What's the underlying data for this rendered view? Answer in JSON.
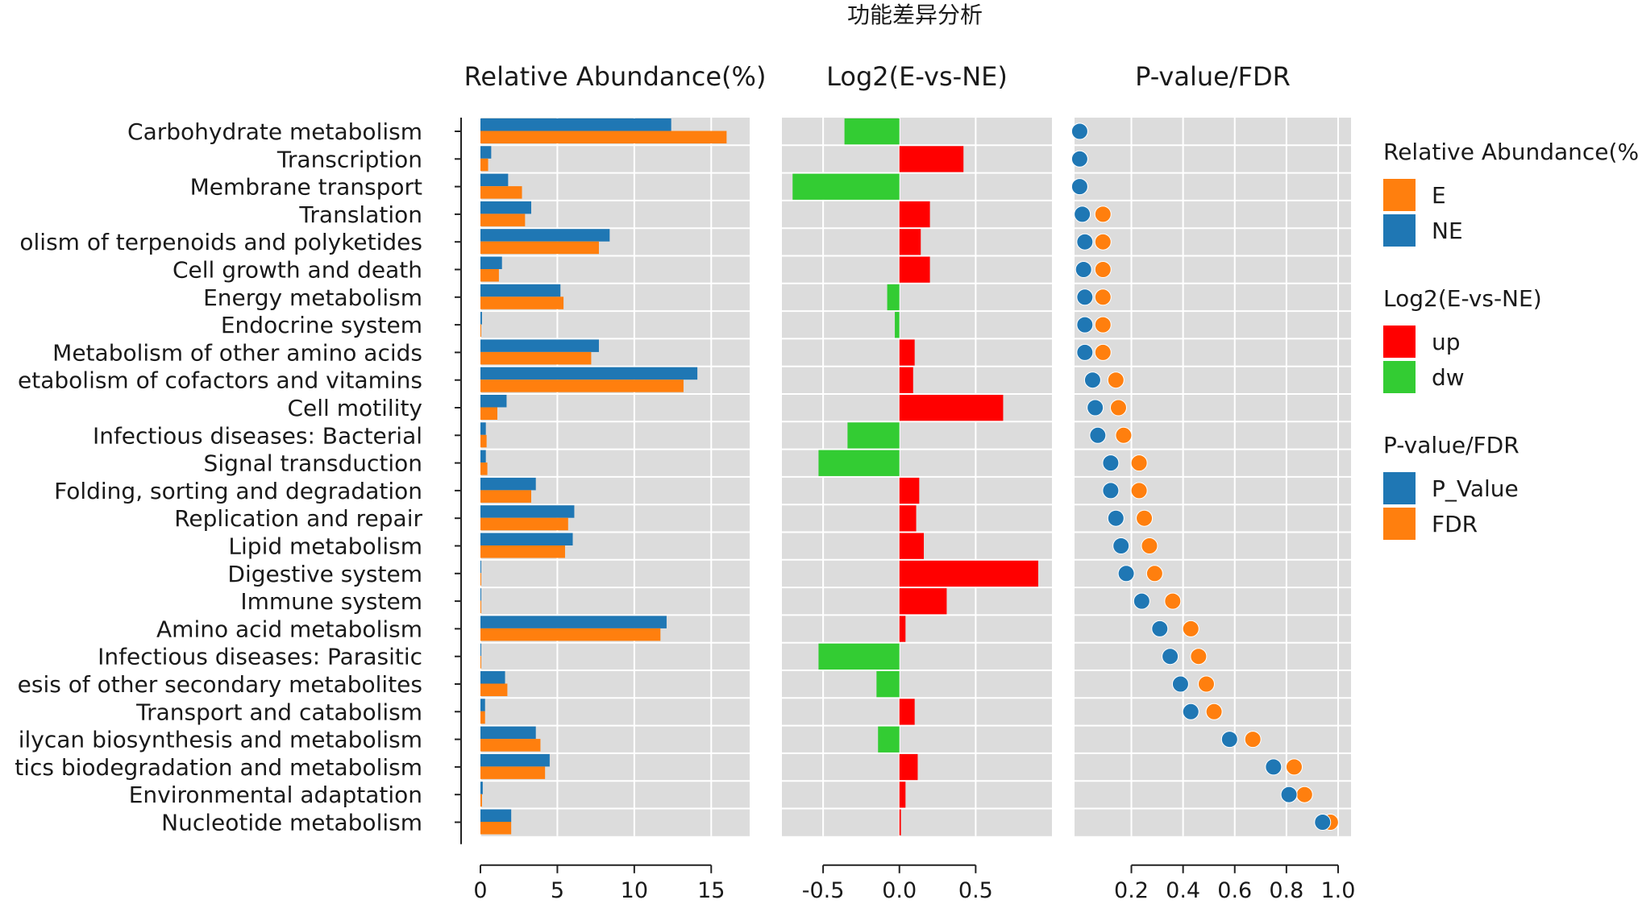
{
  "chart_data": {
    "type": "bar",
    "title": "功能差异分析",
    "categories": [
      "Carbohydrate metabolism",
      "Transcription",
      "Membrane transport",
      "Translation",
      "olism of terpenoids and polyketides",
      "Cell growth and death",
      "Energy metabolism",
      "Endocrine system",
      "Metabolism of other amino acids",
      "etabolism of cofactors and vitamins",
      "Cell motility",
      "Infectious diseases: Bacterial",
      "Signal transduction",
      "Folding, sorting and degradation",
      "Replication and repair",
      "Lipid metabolism",
      "Digestive system",
      "Immune system",
      "Amino acid metabolism",
      "Infectious diseases: Parasitic",
      "esis of other secondary metabolites",
      "Transport and catabolism",
      "ilycan biosynthesis and metabolism",
      "tics biodegradation and metabolism",
      "Environmental adaptation",
      "Nucleotide metabolism"
    ],
    "panels": [
      {
        "type": "bar",
        "title": "Relative Abundance(%)",
        "xlim": [
          0,
          17.5
        ],
        "ticks": [
          0,
          5,
          10,
          15
        ],
        "tick_labels": [
          "0",
          "5",
          "10",
          "15"
        ],
        "series": [
          {
            "name": "NE",
            "color": "#1f77b4",
            "values": [
              12.4,
              0.7,
              1.8,
              3.3,
              8.4,
              1.4,
              5.2,
              0.1,
              7.7,
              14.1,
              1.7,
              0.35,
              0.35,
              3.6,
              6.1,
              6.0,
              0.05,
              0.05,
              12.1,
              0.05,
              1.6,
              0.3,
              3.6,
              4.5,
              0.15,
              2.0
            ]
          },
          {
            "name": "E",
            "color": "#ff7f0e",
            "values": [
              16.0,
              0.5,
              2.7,
              2.9,
              7.7,
              1.2,
              5.4,
              0.05,
              7.2,
              13.2,
              1.1,
              0.4,
              0.45,
              3.3,
              5.7,
              5.5,
              0.05,
              0.05,
              11.7,
              0.05,
              1.75,
              0.3,
              3.9,
              4.2,
              0.1,
              2.0
            ]
          }
        ]
      },
      {
        "type": "bar",
        "title": "Log2(E-vs-NE)",
        "xlim": [
          -0.77,
          1.0
        ],
        "ticks": [
          -0.5,
          0.0,
          0.5
        ],
        "tick_labels": [
          "-0.5",
          "0.0",
          "0.5"
        ],
        "up_color": "#ff0000",
        "dw_color": "#33cc33",
        "values": [
          -0.36,
          0.42,
          -0.7,
          0.2,
          0.14,
          0.2,
          -0.08,
          -0.03,
          0.1,
          0.09,
          0.68,
          -0.34,
          -0.53,
          0.13,
          0.11,
          0.16,
          0.91,
          0.31,
          0.04,
          -0.53,
          -0.15,
          0.1,
          -0.14,
          0.12,
          0.04,
          0.01
        ]
      },
      {
        "type": "scatter",
        "title": "P-value/FDR",
        "xlim": [
          -0.02,
          1.05
        ],
        "ticks": [
          0.2,
          0.4,
          0.6,
          0.8,
          1.0
        ],
        "tick_labels": [
          "0.2",
          "0.4",
          "0.6",
          "0.8",
          "1.0"
        ],
        "series": [
          {
            "name": "P_Value",
            "color": "#1f77b4",
            "values": [
              0.0,
              0.0,
              0.0,
              0.01,
              0.02,
              0.015,
              0.02,
              0.02,
              0.02,
              0.05,
              0.06,
              0.07,
              0.12,
              0.12,
              0.14,
              0.16,
              0.18,
              0.24,
              0.31,
              0.35,
              0.39,
              0.43,
              0.58,
              0.75,
              0.81,
              0.94
            ]
          },
          {
            "name": "FDR",
            "color": "#ff7f0e",
            "values": [
              0.0,
              0.0,
              0.0,
              0.09,
              0.09,
              0.09,
              0.09,
              0.09,
              0.09,
              0.14,
              0.15,
              0.17,
              0.23,
              0.23,
              0.25,
              0.27,
              0.29,
              0.36,
              0.43,
              0.46,
              0.49,
              0.52,
              0.67,
              0.83,
              0.87,
              0.97
            ]
          }
        ]
      }
    ],
    "legend": {
      "position": "right",
      "groups": [
        {
          "title": "Relative Abundance(%)",
          "items": [
            {
              "label": "E",
              "color": "#ff7f0e"
            },
            {
              "label": "NE",
              "color": "#1f77b4"
            }
          ]
        },
        {
          "title": "Log2(E-vs-NE)",
          "items": [
            {
              "label": "up",
              "color": "#ff0000"
            },
            {
              "label": "dw",
              "color": "#33cc33"
            }
          ]
        },
        {
          "title": "P-value/FDR",
          "items": [
            {
              "label": "P_Value",
              "color": "#1f77b4"
            },
            {
              "label": "FDR",
              "color": "#ff7f0e"
            }
          ]
        }
      ]
    },
    "grid": true
  }
}
